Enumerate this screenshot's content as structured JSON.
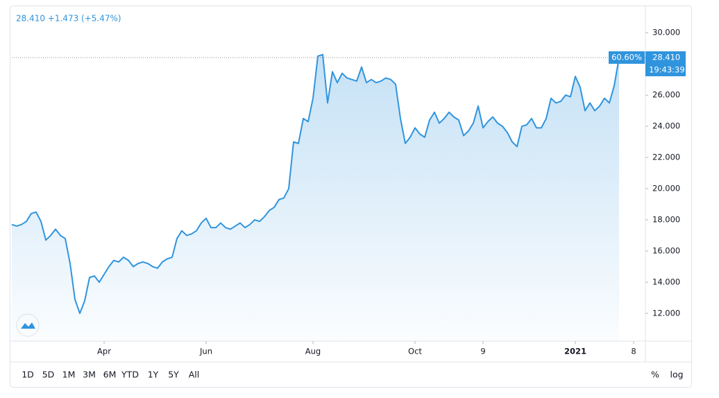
{
  "chart_data": {
    "type": "area",
    "header": "28.410 +1.473 (+5.47%)",
    "color": "#2f94dd",
    "categories": [
      null,
      null,
      null,
      null,
      null,
      null,
      null,
      null,
      null,
      null,
      null,
      null,
      null,
      null,
      null,
      null,
      null,
      null,
      null,
      "Apr",
      null,
      null,
      null,
      null,
      null,
      null,
      null,
      null,
      null,
      null,
      null,
      null,
      null,
      null,
      null,
      null,
      null,
      null,
      null,
      null,
      "Jun",
      null,
      null,
      null,
      null,
      null,
      null,
      null,
      null,
      null,
      null,
      null,
      null,
      null,
      null,
      null,
      null,
      null,
      null,
      null,
      null,
      null,
      "Aug",
      null,
      null,
      null,
      null,
      null,
      null,
      null,
      null,
      null,
      null,
      null,
      null,
      null,
      null,
      null,
      null,
      null,
      null,
      null,
      null,
      "Oct",
      null,
      null,
      null,
      null,
      null,
      null,
      null,
      null,
      null,
      null,
      null,
      null,
      null,
      "9",
      null,
      null,
      null,
      null,
      null,
      null,
      null,
      null,
      null,
      null,
      null,
      null,
      null,
      null,
      null,
      null,
      null,
      null,
      "2021",
      null,
      null,
      null,
      null,
      null,
      null,
      null,
      null,
      null,
      null,
      null,
      "8"
    ],
    "values": [
      17.7,
      17.6,
      17.7,
      17.9,
      18.4,
      18.5,
      17.9,
      16.7,
      17.0,
      17.4,
      17.0,
      16.8,
      15.2,
      12.9,
      12.0,
      12.8,
      14.3,
      14.4,
      14.0,
      14.5,
      15.0,
      15.4,
      15.3,
      15.6,
      15.4,
      15.0,
      15.2,
      15.3,
      15.2,
      15.0,
      14.9,
      15.3,
      15.5,
      15.6,
      16.8,
      17.3,
      17.0,
      17.1,
      17.3,
      17.8,
      18.1,
      17.5,
      17.5,
      17.8,
      17.5,
      17.4,
      17.6,
      17.8,
      17.5,
      17.7,
      18.0,
      17.9,
      18.2,
      18.6,
      18.8,
      19.3,
      19.4,
      20.0,
      23.0,
      22.9,
      24.5,
      24.3,
      25.8,
      28.5,
      28.6,
      25.5,
      27.5,
      26.8,
      27.4,
      27.1,
      27.0,
      26.9,
      27.8,
      26.8,
      27.0,
      26.8,
      26.9,
      27.1,
      27.0,
      26.7,
      24.5,
      22.9,
      23.3,
      23.9,
      23.5,
      23.3,
      24.4,
      24.9,
      24.2,
      24.5,
      24.9,
      24.6,
      24.4,
      23.4,
      23.7,
      24.2,
      25.3,
      23.9,
      24.3,
      24.6,
      24.2,
      24.0,
      23.6,
      23.0,
      22.7,
      24.0,
      24.1,
      24.5,
      23.9,
      23.9,
      24.5,
      25.8,
      25.5,
      25.6,
      26.0,
      25.9,
      27.2,
      26.5,
      25.0,
      25.5,
      25.0,
      25.3,
      25.8,
      25.5,
      26.6,
      28.41,
      null,
      null,
      null
    ],
    "ylim": [
      10.22,
      31.7
    ],
    "yticks": [
      {
        "value": 12,
        "label": "12.000"
      },
      {
        "value": 14,
        "label": "14.000"
      },
      {
        "value": 16,
        "label": "16.000"
      },
      {
        "value": 18,
        "label": "18.000"
      },
      {
        "value": 20,
        "label": "20.000"
      },
      {
        "value": 22,
        "label": "22.000"
      },
      {
        "value": 24,
        "label": "24.000"
      },
      {
        "value": 26,
        "label": "26.000"
      },
      {
        "value": 28,
        "label": "28.000"
      },
      {
        "value": 30,
        "label": "30.000"
      }
    ],
    "grid": false,
    "change_tag": "60.60%",
    "price_tag": "28.410",
    "time_tag": "19:43:39",
    "ranges": [
      "1D",
      "5D",
      "1M",
      "3M",
      "6M",
      "YTD",
      "1Y",
      "5Y",
      "All"
    ],
    "scale_buttons": [
      "%",
      "log"
    ]
  }
}
